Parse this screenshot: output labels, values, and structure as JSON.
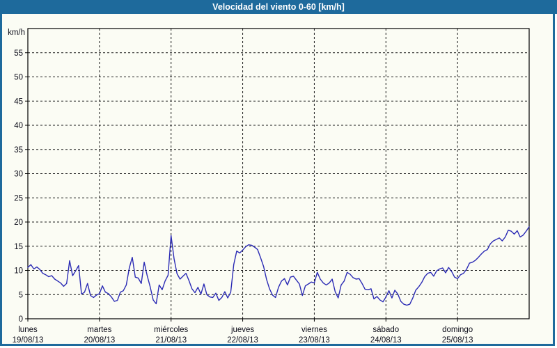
{
  "window": {
    "title": "Velocidad del viento 0-60 [km/h]",
    "accent_color": "#1e6a9c",
    "background_color": "#fbfcf4"
  },
  "chart_data": {
    "type": "line",
    "title": "Velocidad del viento 0-60 [km/h]",
    "unit_label": "km/h",
    "ylim": [
      0,
      60
    ],
    "ytick_step": 5,
    "ytick_labels": [
      "0",
      "5",
      "10",
      "15",
      "20",
      "25",
      "30",
      "35",
      "40",
      "45",
      "50",
      "55"
    ],
    "grid": "dashed",
    "legend": "none",
    "line_color": "#2a2ab4",
    "grid_color": "#1a1a1a",
    "x_days": [
      {
        "name": "lunes",
        "date": "19/08/13"
      },
      {
        "name": "martes",
        "date": "20/08/13"
      },
      {
        "name": "miércoles",
        "date": "21/08/13"
      },
      {
        "name": "jueves",
        "date": "22/08/13"
      },
      {
        "name": "viernes",
        "date": "23/08/13"
      },
      {
        "name": "sábado",
        "date": "24/08/13"
      },
      {
        "name": "domingo",
        "date": "25/08/13"
      }
    ],
    "x_resolution": "hourly",
    "values_hourly": [
      10.6,
      11.2,
      10.3,
      10.7,
      10.2,
      9.4,
      9.1,
      8.7,
      8.9,
      8.2,
      7.8,
      7.4,
      6.7,
      7.3,
      12.0,
      8.9,
      9.9,
      11.0,
      5.1,
      5.5,
      7.3,
      4.8,
      4.4,
      4.9,
      5.2,
      6.8,
      5.5,
      5.2,
      4.5,
      3.6,
      3.8,
      5.5,
      5.8,
      7.0,
      10.5,
      12.7,
      8.6,
      8.4,
      7.3,
      11.7,
      8.9,
      6.6,
      3.9,
      3.1,
      7.0,
      6.0,
      7.8,
      9.0,
      17.2,
      12.4,
      9.3,
      8.2,
      8.8,
      9.4,
      7.9,
      6.2,
      5.4,
      6.5,
      5.1,
      7.2,
      5.0,
      4.5,
      4.4,
      5.3,
      3.8,
      4.4,
      5.6,
      4.3,
      5.5,
      11.2,
      14.0,
      13.6,
      14.2,
      14.9,
      15.3,
      15.2,
      14.8,
      14.3,
      12.6,
      10.8,
      8.1,
      6.2,
      4.9,
      4.4,
      6.5,
      7.8,
      8.3,
      7.0,
      8.6,
      8.8,
      8.0,
      7.2,
      4.8,
      6.8,
      7.2,
      7.6,
      7.4,
      9.6,
      8.2,
      7.4,
      7.0,
      7.4,
      8.2,
      5.6,
      4.3,
      7.0,
      7.8,
      9.6,
      9.2,
      8.5,
      8.2,
      8.3,
      7.3,
      6.1,
      6.0,
      6.2,
      4.1,
      4.6,
      3.9,
      3.5,
      4.5,
      5.8,
      4.3,
      5.9,
      5.1,
      3.6,
      3.0,
      2.8,
      3.0,
      4.3,
      5.9,
      6.6,
      7.5,
      8.7,
      9.4,
      9.6,
      8.8,
      9.9,
      10.3,
      10.5,
      9.5,
      10.6,
      9.8,
      8.6,
      8.3,
      9.1,
      9.4,
      10.2,
      11.5,
      11.7,
      12.1,
      12.7,
      13.4,
      14.0,
      14.3,
      15.5,
      16.1,
      16.4,
      16.7,
      16.1,
      16.9,
      18.3,
      18.1,
      17.5,
      18.2,
      16.9,
      17.3,
      18.1,
      19.0
    ]
  }
}
